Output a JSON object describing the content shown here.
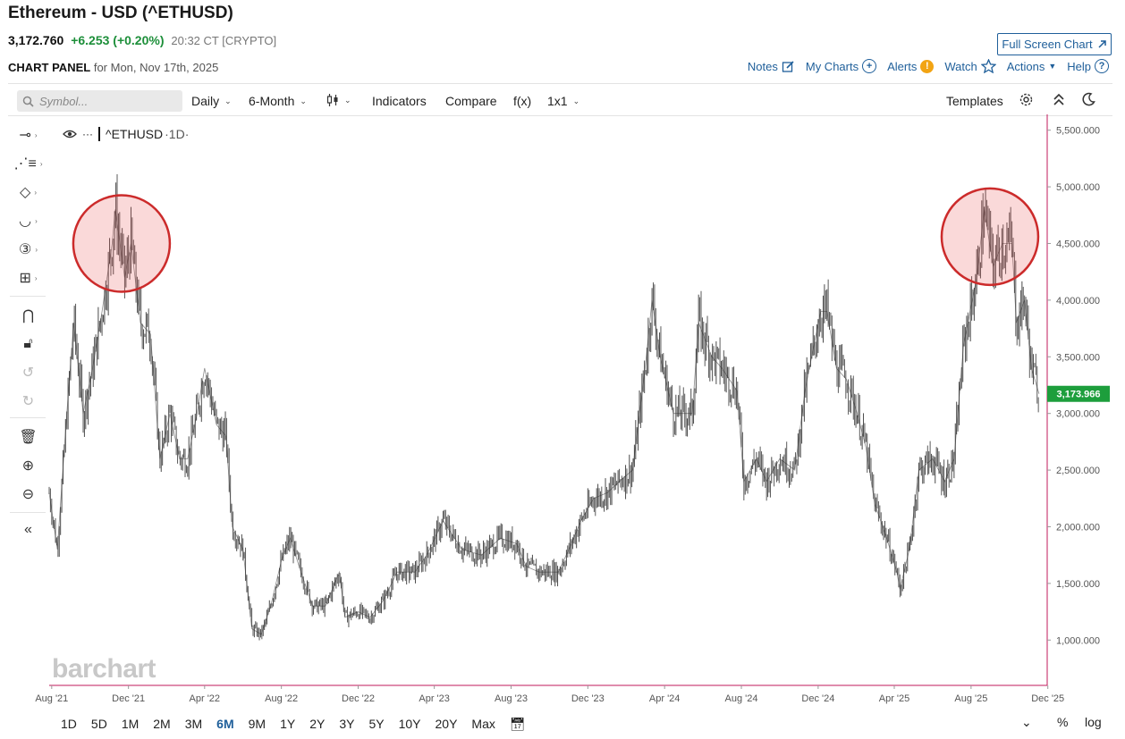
{
  "header": {
    "title": "Ethereum - USD (^ETHUSD)",
    "price": "3,172.760",
    "change": "+6.253 (+0.20%)",
    "time": "20:32 CT [CRYPTO]",
    "fullscreen_label": "Full Screen Chart",
    "panel_label": "CHART PANEL",
    "panel_date": "for Mon, Nov 17th, 2025"
  },
  "toplinks": {
    "notes": "Notes",
    "mycharts": "My Charts",
    "alerts": "Alerts",
    "alerts_badge": "!",
    "watch": "Watch",
    "actions": "Actions",
    "help": "Help"
  },
  "toolbar": {
    "symbol_placeholder": "Symbol...",
    "interval": "Daily",
    "period": "6-Month",
    "indicators": "Indicators",
    "compare": "Compare",
    "fx": "f(x)",
    "layout": "1x1",
    "templates": "Templates"
  },
  "series_label": "^ETHUSD",
  "series_interval": "·1D·",
  "last_price_tag": "3,173.966",
  "watermark": "barchart",
  "ranges": [
    "1D",
    "5D",
    "1M",
    "2M",
    "3M",
    "6M",
    "9M",
    "1Y",
    "2Y",
    "3Y",
    "5Y",
    "10Y",
    "20Y",
    "Max"
  ],
  "active_range": "6M",
  "percent_label": "%",
  "log_label": "log",
  "icons": {
    "search": "search-icon",
    "notes": "pencil-square-icon",
    "mycharts": "plus-circle-icon",
    "watch": "star-icon",
    "help": "question-circle-icon",
    "settings": "gear-icon",
    "theme": "moon-icon",
    "collapse": "chevron-double-up-icon",
    "calendar": "calendar-icon"
  },
  "colors": {
    "up": "#1d8f3a",
    "down": "#c0392b",
    "axis_line": "#c2185b",
    "highlight": "#cc2b2b",
    "link": "#1f5f9a",
    "price_tag": "#1d9e3c"
  },
  "chart_data": {
    "type": "line",
    "title": "^ETHUSD",
    "xlabel": "",
    "ylabel": "",
    "ylim": [
      600,
      5600
    ],
    "y_ticks": [
      1000,
      1500,
      2000,
      2500,
      3000,
      3500,
      4000,
      4500,
      5000,
      5500
    ],
    "y_tick_labels": [
      "1,000.000",
      "1,500.000",
      "2,000.000",
      "2,500.000",
      "3,000.000",
      "3,500.000",
      "4,000.000",
      "4,500.000",
      "5,000.000",
      "5,500.000"
    ],
    "x_ticks": [
      "2021-08",
      "2021-12",
      "2022-04",
      "2022-08",
      "2022-12",
      "2023-04",
      "2023-08",
      "2023-12",
      "2024-04",
      "2024-08",
      "2024-12",
      "2025-04",
      "2025-08",
      "2025-12"
    ],
    "x_tick_labels": [
      "Aug '21",
      "Dec '21",
      "Apr '22",
      "Aug '22",
      "Dec '22",
      "Apr '23",
      "Aug '23",
      "Dec '23",
      "Apr '24",
      "Aug '24",
      "Dec '24",
      "Apr '25",
      "Aug '25",
      "Dec '25"
    ],
    "x_range": [
      "2021-07-28",
      "2025-11-30"
    ],
    "series": [
      {
        "values": [
          [
            "2021-07-28",
            2300
          ],
          [
            "2021-08-10",
            1800
          ],
          [
            "2021-08-25",
            3000
          ],
          [
            "2021-09-05",
            3800
          ],
          [
            "2021-09-20",
            3000
          ],
          [
            "2021-10-05",
            3400
          ],
          [
            "2021-10-20",
            3900
          ],
          [
            "2021-11-05",
            4500
          ],
          [
            "2021-11-10",
            4800
          ],
          [
            "2021-11-25",
            4200
          ],
          [
            "2021-12-05",
            4500
          ],
          [
            "2021-12-20",
            3800
          ],
          [
            "2022-01-05",
            3700
          ],
          [
            "2022-01-20",
            2600
          ],
          [
            "2022-02-05",
            3000
          ],
          [
            "2022-02-20",
            2600
          ],
          [
            "2022-03-05",
            2600
          ],
          [
            "2022-03-20",
            3000
          ],
          [
            "2022-04-01",
            3400
          ],
          [
            "2022-04-20",
            2900
          ],
          [
            "2022-05-05",
            2800
          ],
          [
            "2022-05-15",
            2000
          ],
          [
            "2022-06-01",
            1800
          ],
          [
            "2022-06-15",
            1100
          ],
          [
            "2022-06-30",
            1050
          ],
          [
            "2022-07-15",
            1300
          ],
          [
            "2022-08-01",
            1700
          ],
          [
            "2022-08-15",
            1900
          ],
          [
            "2022-09-01",
            1600
          ],
          [
            "2022-09-20",
            1300
          ],
          [
            "2022-10-10",
            1300
          ],
          [
            "2022-11-01",
            1600
          ],
          [
            "2022-11-10",
            1200
          ],
          [
            "2022-12-01",
            1250
          ],
          [
            "2022-12-20",
            1200
          ],
          [
            "2023-01-10",
            1350
          ],
          [
            "2023-02-01",
            1600
          ],
          [
            "2023-03-01",
            1600
          ],
          [
            "2023-03-20",
            1750
          ],
          [
            "2023-04-15",
            2050
          ],
          [
            "2023-05-15",
            1800
          ],
          [
            "2023-06-15",
            1750
          ],
          [
            "2023-07-15",
            1900
          ],
          [
            "2023-08-10",
            1850
          ],
          [
            "2023-08-25",
            1650
          ],
          [
            "2023-09-15",
            1600
          ],
          [
            "2023-10-15",
            1600
          ],
          [
            "2023-11-01",
            1800
          ],
          [
            "2023-11-20",
            2050
          ],
          [
            "2023-12-10",
            2250
          ],
          [
            "2024-01-01",
            2300
          ],
          [
            "2024-01-20",
            2400
          ],
          [
            "2024-02-10",
            2500
          ],
          [
            "2024-03-01",
            3400
          ],
          [
            "2024-03-12",
            4000
          ],
          [
            "2024-03-25",
            3500
          ],
          [
            "2024-04-15",
            3000
          ],
          [
            "2024-05-01",
            3000
          ],
          [
            "2024-05-15",
            3000
          ],
          [
            "2024-05-25",
            3800
          ],
          [
            "2024-06-15",
            3500
          ],
          [
            "2024-07-01",
            3400
          ],
          [
            "2024-07-25",
            3200
          ],
          [
            "2024-08-05",
            2400
          ],
          [
            "2024-08-25",
            2600
          ],
          [
            "2024-09-10",
            2400
          ],
          [
            "2024-10-01",
            2600
          ],
          [
            "2024-10-25",
            2500
          ],
          [
            "2024-11-10",
            3200
          ],
          [
            "2024-12-05",
            3900
          ],
          [
            "2024-12-15",
            3900
          ],
          [
            "2024-12-30",
            3400
          ],
          [
            "2025-01-15",
            3300
          ],
          [
            "2025-02-01",
            3000
          ],
          [
            "2025-02-15",
            2700
          ],
          [
            "2025-03-01",
            2200
          ],
          [
            "2025-03-20",
            1900
          ],
          [
            "2025-04-05",
            1600
          ],
          [
            "2025-04-10",
            1450
          ],
          [
            "2025-04-25",
            1800
          ],
          [
            "2025-05-10",
            2500
          ],
          [
            "2025-06-01",
            2600
          ],
          [
            "2025-06-20",
            2400
          ],
          [
            "2025-07-05",
            2600
          ],
          [
            "2025-07-20",
            3600
          ],
          [
            "2025-08-10",
            4200
          ],
          [
            "2025-08-22",
            4800
          ],
          [
            "2025-09-05",
            4300
          ],
          [
            "2025-09-20",
            4500
          ],
          [
            "2025-10-05",
            4500
          ],
          [
            "2025-10-12",
            3800
          ],
          [
            "2025-10-25",
            4000
          ],
          [
            "2025-11-05",
            3400
          ],
          [
            "2025-11-17",
            3173
          ]
        ]
      }
    ],
    "annotations": [
      {
        "type": "circle",
        "center_date": "2021-11-20",
        "center_value": 4500
      },
      {
        "type": "circle",
        "center_date": "2025-08-31",
        "center_value": 4560
      }
    ],
    "grid": false,
    "legend": "none"
  }
}
